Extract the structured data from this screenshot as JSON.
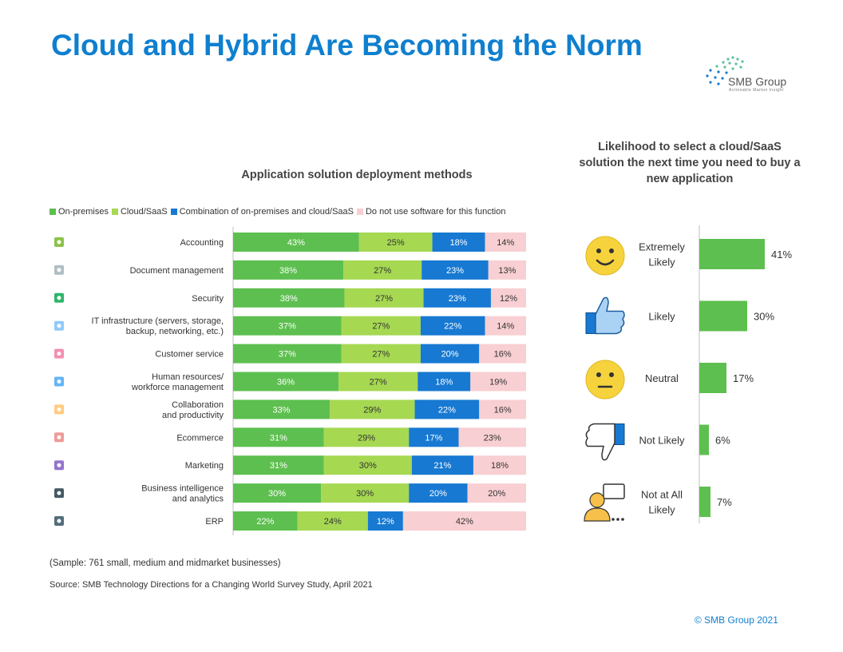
{
  "page": {
    "title": "Cloud and Hybrid Are Becoming the Norm",
    "logo_text": "SMB Group",
    "logo_tagline": "Actionable Market Insight",
    "sample_note": "(Sample: 761 small, medium and midmarket businesses)",
    "source_note": "Source: SMB Technology Directions for a Changing World Survey Study, April 2021",
    "copyright": "© SMB Group 2021"
  },
  "colors": {
    "title_blue": "#0f7fcf",
    "on_premises": "#5dbf4f",
    "cloud_saas": "#a6d852",
    "combination": "#1779d2",
    "no_software": "#f8cfd2",
    "likelihood_bar": "#5dbf4f"
  },
  "chart_data": [
    {
      "type": "bar",
      "orientation": "horizontal",
      "stacked": true,
      "title": "Application solution deployment methods",
      "legend_position": "top",
      "categories": [
        "Accounting",
        "Document management",
        "Security",
        "IT infrastructure (servers, storage,\nbackup, networking, etc.)",
        "Customer service",
        "Human resources/\nworkforce management",
        "Collaboration\nand productivity",
        "Ecommerce",
        "Marketing",
        "Business intelligence\nand analytics",
        "ERP"
      ],
      "category_icons": [
        "accounting-icon",
        "document-management-icon",
        "security-shield-icon",
        "it-infrastructure-icon",
        "customer-service-icon",
        "human-resources-icon",
        "collaboration-handshake-icon",
        "ecommerce-icon",
        "marketing-icon",
        "business-intelligence-icon",
        "erp-network-icon"
      ],
      "series": [
        {
          "name": "On-premises",
          "values": [
            43,
            38,
            38,
            37,
            37,
            36,
            33,
            31,
            31,
            30,
            22
          ]
        },
        {
          "name": "Cloud/SaaS",
          "values": [
            25,
            27,
            27,
            27,
            27,
            27,
            29,
            29,
            30,
            30,
            24
          ]
        },
        {
          "name": "Combination of on-premises and cloud/SaaS",
          "values": [
            18,
            23,
            23,
            22,
            20,
            18,
            22,
            17,
            21,
            20,
            12
          ]
        },
        {
          "name": "Do not use software for this function",
          "values": [
            14,
            13,
            12,
            14,
            16,
            19,
            16,
            23,
            18,
            20,
            42
          ]
        }
      ],
      "value_suffix": "%"
    },
    {
      "type": "bar",
      "orientation": "horizontal",
      "title": "Likelihood to select a cloud/SaaS solution the next time you need to buy a new application",
      "categories": [
        "Extremely\nLikely",
        "Likely",
        "Neutral",
        "Not Likely",
        "Not at All\nLikely"
      ],
      "category_icons": [
        "smiley-face-icon",
        "thumbs-up-icon",
        "neutral-face-icon",
        "thumbs-down-icon",
        "person-speech-bubble-icon"
      ],
      "values": [
        41,
        30,
        17,
        6,
        7
      ],
      "value_suffix": "%"
    }
  ]
}
